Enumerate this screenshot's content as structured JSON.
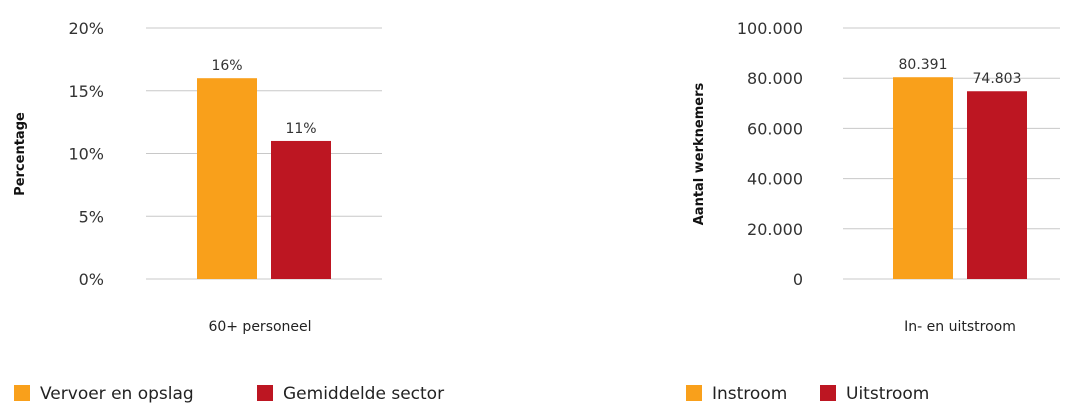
{
  "chart_data": [
    {
      "type": "bar",
      "categories": [
        "60+ personeel"
      ],
      "series": [
        {
          "name": "Vervoer en opslag",
          "values": [
            16
          ],
          "color": "#f9a01b"
        },
        {
          "name": "Gemiddelde sector",
          "values": [
            11
          ],
          "color": "#bd1622"
        }
      ],
      "data_labels": [
        "16%",
        "11%"
      ],
      "ylabel": "Percentage",
      "xlabel": "60+ personeel",
      "ylim": [
        0,
        20
      ],
      "yticks": [
        "0%",
        "5%",
        "10%",
        "15%",
        "20%"
      ],
      "grid": true,
      "legend_position": "bottom-left"
    },
    {
      "type": "bar",
      "categories": [
        "In- en uitstroom"
      ],
      "series": [
        {
          "name": "Instroom",
          "values": [
            80391
          ],
          "color": "#f9a01b"
        },
        {
          "name": "Uitstroom",
          "values": [
            74803
          ],
          "color": "#bd1622"
        }
      ],
      "data_labels": [
        "80.391",
        "74.803"
      ],
      "ylabel": "Aantal werknemers",
      "xlabel": "In- en uitstroom",
      "ylim": [
        0,
        100000
      ],
      "yticks": [
        "0",
        "20.000",
        "40.000",
        "60.000",
        "80.000",
        "100.000"
      ],
      "grid": true,
      "legend_position": "bottom-left"
    }
  ]
}
